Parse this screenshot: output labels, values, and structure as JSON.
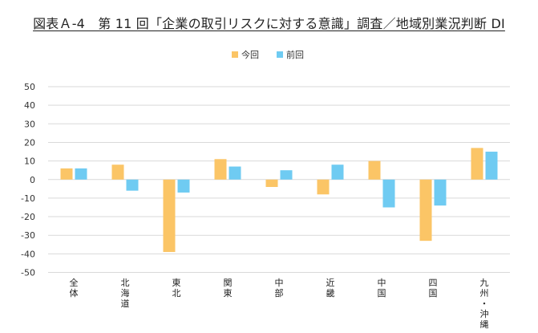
{
  "chart_data": {
    "type": "bar",
    "title": "図表Ａ-4　第 11 回「企業の取引リスクに対する意識」調査／地域別業況判断 DI",
    "categories": [
      "全体",
      "北海道",
      "東北",
      "関東",
      "中部",
      "近畿",
      "中国",
      "四国",
      "九州・沖縄"
    ],
    "series": [
      {
        "name": "今回",
        "values": [
          6,
          8,
          -39,
          11,
          -4,
          -8,
          10,
          -33,
          17
        ]
      },
      {
        "name": "前回",
        "values": [
          6,
          -6,
          -7,
          7,
          5,
          8,
          -15,
          -14,
          15
        ]
      }
    ],
    "ylim": [
      -50,
      50
    ],
    "yticks": [
      50,
      40,
      30,
      20,
      10,
      0,
      -10,
      -20,
      -30,
      -40,
      -50
    ],
    "ytick_labels": [
      "50",
      "40",
      "30",
      "20",
      "10",
      "0",
      "-10",
      "-20",
      "-30",
      "-40",
      "-50"
    ],
    "grid": true,
    "legend_position": "top-center",
    "colors": {
      "今回": "#FBC566",
      "前回": "#6FCBF2",
      "grid": "#d9d9d9"
    }
  }
}
